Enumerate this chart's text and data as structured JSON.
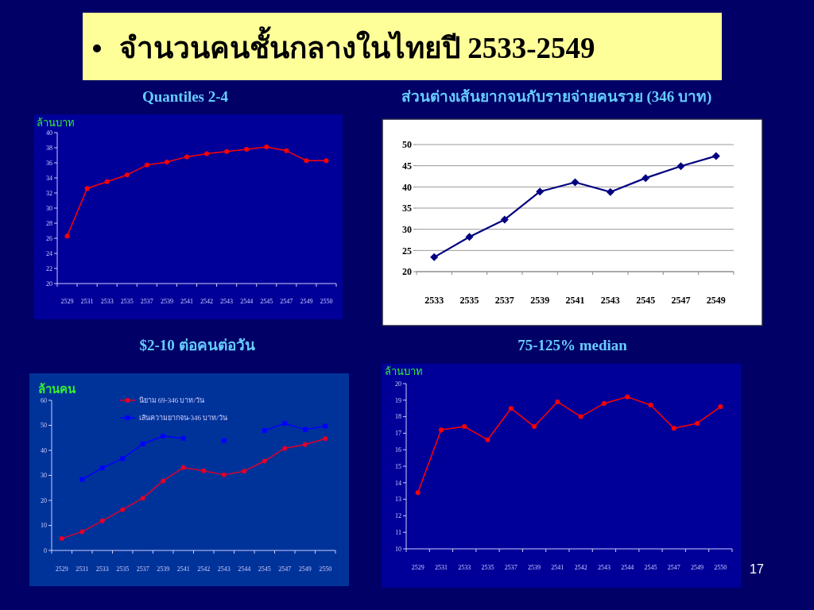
{
  "chart_data": [
    {
      "type": "other",
      "title": "จำนวนคนชั้นกลางในไทยปี 2533-2549",
      "annotations": [
        "17"
      ]
    },
    {
      "type": "line",
      "title": "Quantiles 2-4",
      "ylabel": "ล้านบาท",
      "categories": [
        "2529",
        "2531",
        "2533",
        "2535",
        "2537",
        "2539",
        "2541",
        "2542",
        "2543",
        "2544",
        "2545",
        "2547",
        "2549",
        "2550"
      ],
      "series": [
        {
          "color": "#ff0000",
          "values": [
            26.3,
            32.6,
            33.5,
            34.4,
            35.7,
            36.1,
            36.8,
            37.2,
            37.5,
            37.8,
            38.1,
            37.6,
            36.3,
            36.3
          ]
        }
      ],
      "ylim": [
        20,
        40
      ],
      "yticks": [
        20,
        22,
        24,
        26,
        28,
        30,
        32,
        34,
        36,
        38,
        40
      ],
      "marker": "circle"
    },
    {
      "type": "line",
      "title": "ส่วนต่างเส้นยากจนกับรายจ่ายคนรวย (346 บาท)",
      "categories": [
        "2533",
        "2535",
        "2537",
        "2539",
        "2541",
        "2543",
        "2545",
        "2547",
        "2549"
      ],
      "series": [
        {
          "color": "#000080",
          "values": [
            23.4,
            28.2,
            32.3,
            38.9,
            41.1,
            38.8,
            42.1,
            44.9,
            47.3
          ]
        }
      ],
      "ylim": [
        20,
        50
      ],
      "yticks": [
        20,
        25,
        30,
        35,
        40,
        45,
        50
      ],
      "marker": "diamond",
      "grid": "y"
    },
    {
      "type": "line",
      "title": "$2-10 ต่อคนต่อวัน",
      "ylabel": "ล้านคน",
      "categories": [
        "2529",
        "2531",
        "2533",
        "2535",
        "2537",
        "2539",
        "2541",
        "2542",
        "2543",
        "2544",
        "2545",
        "2547",
        "2549",
        "2550"
      ],
      "series": [
        {
          "name": "นิยาม 69-346 บาท/วัน",
          "color": "#e0002a",
          "marker": "circle",
          "values": [
            4.8,
            7.5,
            11.8,
            16.3,
            20.9,
            27.8,
            33.1,
            31.8,
            30.2,
            31.7,
            35.7,
            40.8,
            42.3,
            44.7
          ]
        },
        {
          "name": "เส้นความยากจน-346 บาท/วัน",
          "color": "#0000ff",
          "marker": "square",
          "values": [
            null,
            28.4,
            33.0,
            36.7,
            42.6,
            45.7,
            44.8,
            null,
            43.9,
            null,
            47.9,
            50.8,
            48.3,
            49.7
          ]
        }
      ],
      "ylim": [
        0,
        60
      ],
      "yticks": [
        0,
        10,
        20,
        30,
        40,
        50,
        60
      ],
      "legend": "top"
    },
    {
      "type": "line",
      "title": "75-125% median",
      "ylabel": "ล้านบาท",
      "categories": [
        "2529",
        "2531",
        "2533",
        "2535",
        "2537",
        "2539",
        "2541",
        "2542",
        "2543",
        "2544",
        "2545",
        "2547",
        "2549",
        "2550"
      ],
      "series": [
        {
          "color": "#ff0000",
          "values": [
            13.4,
            17.2,
            17.4,
            16.6,
            18.5,
            17.4,
            18.9,
            18.0,
            18.8,
            19.2,
            18.7,
            17.3,
            17.6,
            18.6
          ]
        }
      ],
      "ylim": [
        10,
        20
      ],
      "yticks": [
        10,
        11,
        12,
        13,
        14,
        15,
        16,
        17,
        18,
        19,
        20
      ],
      "marker": "circle"
    }
  ]
}
